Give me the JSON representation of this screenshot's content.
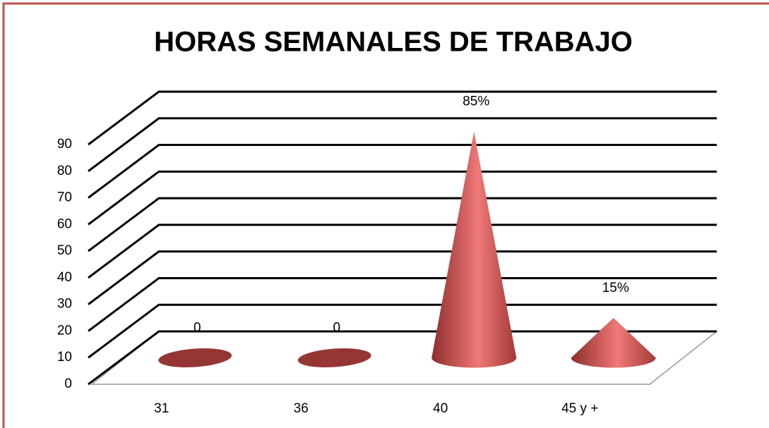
{
  "chart_data": {
    "type": "cone3d",
    "title": "HORAS SEMANALES DE TRABAJO",
    "categories": [
      "31",
      "36",
      "40",
      "45 y +"
    ],
    "values": [
      0,
      0,
      85,
      15
    ],
    "value_labels": [
      "0",
      "0",
      "85%",
      "15%"
    ],
    "color": "#c0504d",
    "ylim": [
      0,
      90
    ],
    "yticks": [
      0,
      10,
      20,
      30,
      40,
      50,
      60,
      70,
      80,
      90
    ],
    "grid": true
  }
}
